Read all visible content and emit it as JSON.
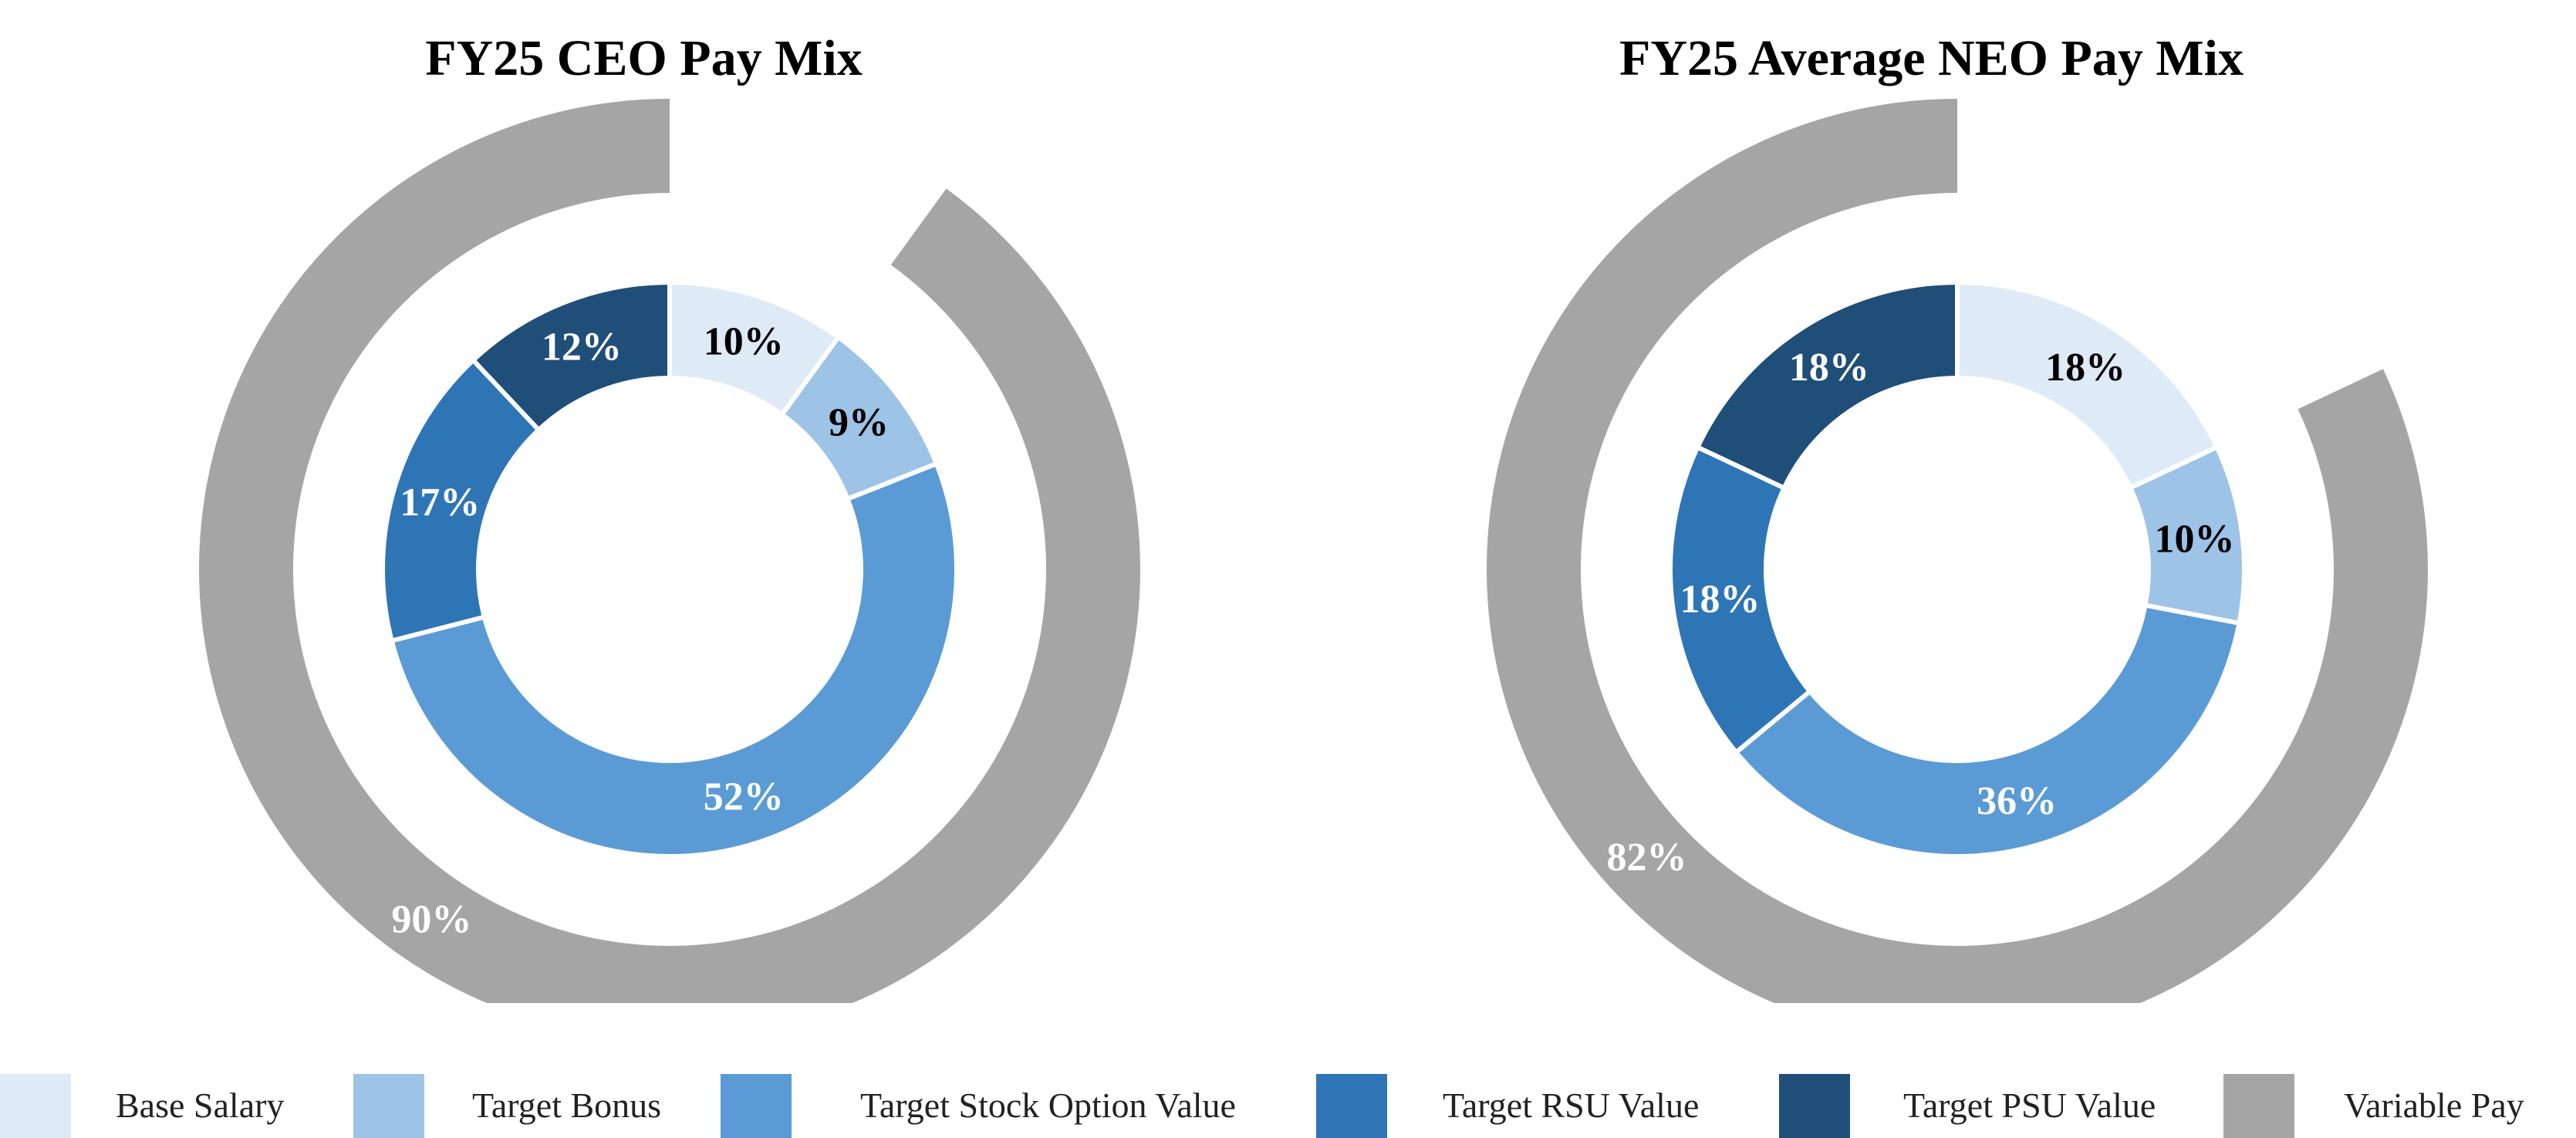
{
  "chart_data": [
    {
      "type": "pie",
      "title": "FY25 CEO Pay Mix",
      "inner_ring": {
        "categories": [
          "Base Salary",
          "Target Bonus",
          "Target Stock Option Value",
          "Target RSU Value",
          "Target PSU Value"
        ],
        "values": [
          10,
          9,
          52,
          17,
          12
        ],
        "labels": [
          "10%",
          "9%",
          "52%",
          "17%",
          "12%"
        ]
      },
      "outer_ring": {
        "categories": [
          "Variable Pay"
        ],
        "values": [
          90
        ],
        "labels": [
          "90%"
        ]
      }
    },
    {
      "type": "pie",
      "title": "FY25 Average NEO Pay Mix",
      "inner_ring": {
        "categories": [
          "Base Salary",
          "Target Bonus",
          "Target Stock Option Value",
          "Target RSU Value",
          "Target PSU Value"
        ],
        "values": [
          18,
          10,
          36,
          18,
          18
        ],
        "labels": [
          "18%",
          "10%",
          "36%",
          "18%",
          "18%"
        ]
      },
      "outer_ring": {
        "categories": [
          "Variable Pay"
        ],
        "values": [
          82
        ],
        "labels": [
          "82%"
        ]
      }
    }
  ],
  "legend": {
    "placement": "bottom",
    "items": [
      {
        "label": "Base Salary",
        "color": "#deebf7"
      },
      {
        "label": "Target Bonus",
        "color": "#9dc3e6"
      },
      {
        "label": "Target Stock Option Value",
        "color": "#5b9bd5"
      },
      {
        "label": "Target RSU Value",
        "color": "#2e75b6"
      },
      {
        "label": "Target PSU Value",
        "color": "#1f4e79"
      },
      {
        "label": "Variable Pay",
        "color": "#a5a5a5"
      }
    ]
  },
  "colors": {
    "inner": [
      "#deebf7",
      "#9dc3e6",
      "#5b9bd5",
      "#2e75b6",
      "#1f4e79"
    ],
    "variable_pay": "#a5a5a5",
    "label_dark": "#000000",
    "label_light": "#ffffff"
  }
}
